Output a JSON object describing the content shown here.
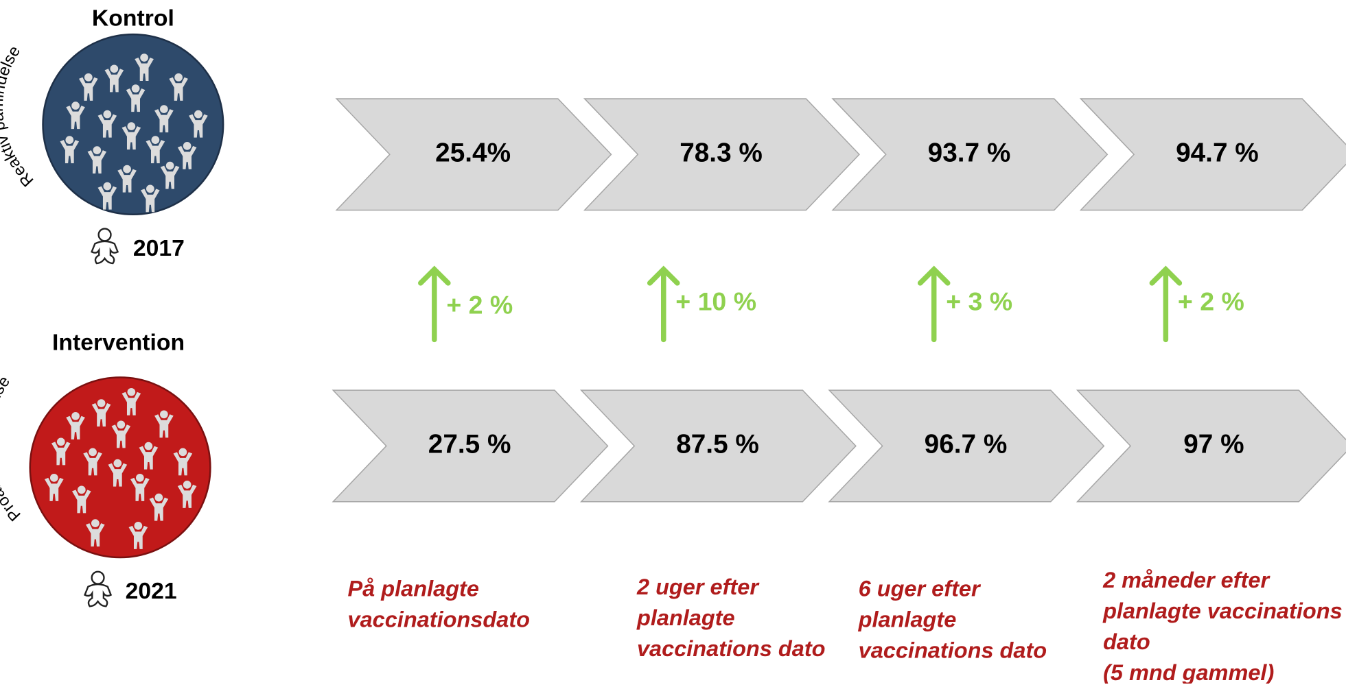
{
  "groups": [
    {
      "title": "Kontrol",
      "reminder": "Reaktiv påmindelse",
      "year": "2017",
      "values": [
        "25.4%",
        "78.3 %",
        "93.7 %",
        "94.7 %"
      ]
    },
    {
      "title": "Intervention",
      "reminder": "Proaktiv påmindelse",
      "year": "2021",
      "values": [
        "27.5 %",
        "87.5 %",
        "96.7 %",
        "97 %"
      ]
    }
  ],
  "differences": [
    "+ 2 %",
    "+ 10 %",
    "+ 3 %",
    "+ 2 %"
  ],
  "timepoints": [
    {
      "lines": [
        "På planlagte",
        "vaccinationsdato"
      ]
    },
    {
      "lines": [
        "2 uger efter",
        "planlagte",
        "vaccinations dato"
      ]
    },
    {
      "lines": [
        "6 uger efter",
        "planlagte",
        "vaccinations dato"
      ]
    },
    {
      "lines": [
        "2 måneder efter",
        "planlagte vaccinations",
        "dato",
        "(5 mnd gammel)"
      ]
    }
  ]
}
